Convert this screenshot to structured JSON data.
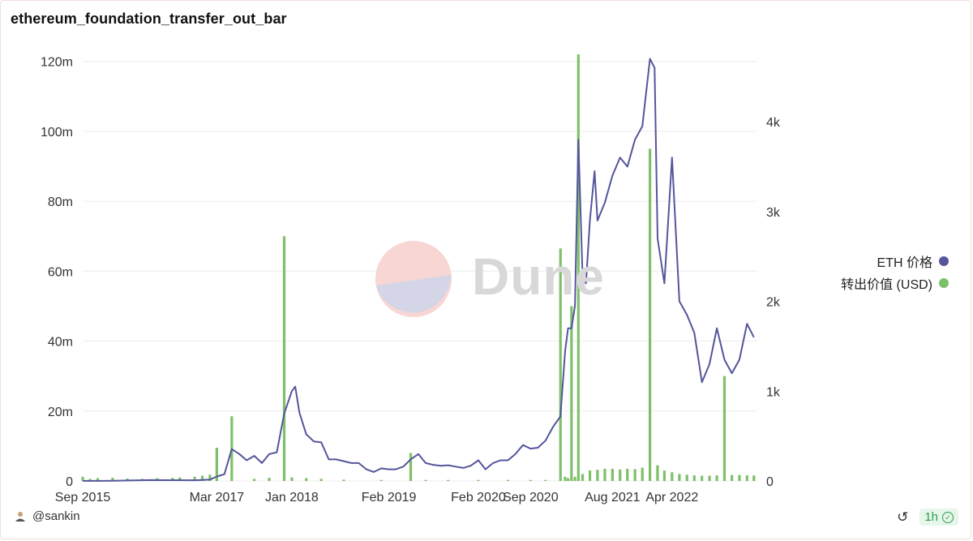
{
  "title": "ethereum_foundation_transfer_out_bar",
  "legend": [
    {
      "label": "ETH 价格",
      "color": "#54559b"
    },
    {
      "label": "转出价值 (USD)",
      "color": "#7ec06a"
    }
  ],
  "watermark": {
    "text": "Dune"
  },
  "footer": {
    "user": "@sankin",
    "age": "1h",
    "icons": [
      "user-icon",
      "refresh-icon",
      "check-icon"
    ]
  },
  "chart_data": {
    "type": "bar",
    "title": "ethereum_foundation_transfer_out_bar",
    "xlabel": "",
    "x_tick_labels": [
      "Sep 2015",
      "Mar 2017",
      "Jan 2018",
      "Feb 2019",
      "Feb 2020",
      "Sep 2020",
      "Aug 2021",
      "Apr 2022"
    ],
    "y_left": {
      "ticks": [
        "0",
        "20m",
        "40m",
        "60m",
        "80m",
        "100m",
        "120m"
      ],
      "range": [
        0,
        122000000
      ]
    },
    "y_right": {
      "ticks": [
        "0",
        "1k",
        "2k",
        "3k",
        "4k"
      ],
      "range": [
        0,
        4750
      ]
    },
    "grid": true,
    "legend_position": "right",
    "series": [
      {
        "name": "转出价值 (USD)",
        "axis": "left",
        "kind": "bar",
        "color": "#7ec06a",
        "x": [
          "2015-09",
          "2015-10",
          "2015-11",
          "2016-01",
          "2016-03",
          "2016-05",
          "2016-07",
          "2016-09",
          "2016-10",
          "2016-12",
          "2017-01",
          "2017-02",
          "2017-03",
          "2017-05",
          "2017-08",
          "2017-10",
          "2017-12",
          "2018-01",
          "2018-03",
          "2018-05",
          "2018-08",
          "2019-01",
          "2019-05",
          "2019-07",
          "2019-10",
          "2020-02",
          "2020-06",
          "2020-09",
          "2020-11",
          "2021-01",
          "2021-01-20",
          "2021-02",
          "2021-02-15",
          "2021-03",
          "2021-03-15",
          "2021-04",
          "2021-05",
          "2021-06",
          "2021-07",
          "2021-08",
          "2021-09",
          "2021-10",
          "2021-11",
          "2021-12",
          "2022-01",
          "2022-02",
          "2022-03",
          "2022-04",
          "2022-05",
          "2022-06",
          "2022-07",
          "2022-08",
          "2022-09",
          "2022-10",
          "2022-11",
          "2022-12",
          "2023-01",
          "2023-02",
          "2023-03"
        ],
        "values": [
          1200000,
          600000,
          800000,
          900000,
          700000,
          600000,
          800000,
          900000,
          1000000,
          1200000,
          1500000,
          1800000,
          9500000,
          18500000,
          600000,
          900000,
          70000000,
          1000000,
          800000,
          600000,
          400000,
          300000,
          8000000,
          300000,
          300000,
          300000,
          300000,
          300000,
          300000,
          66500000,
          1200000,
          800000,
          50000000,
          1200000,
          122000000,
          2000000,
          3000000,
          3200000,
          3500000,
          3500000,
          3300000,
          3500000,
          3400000,
          3800000,
          95000000,
          4500000,
          3000000,
          2500000,
          2000000,
          1800000,
          1600000,
          1500000,
          1500000,
          1600000,
          30000000,
          1700000,
          1700000,
          1600000,
          1600000
        ]
      },
      {
        "name": "ETH 价格",
        "axis": "right",
        "kind": "line",
        "color": "#54559b",
        "x": [
          "2015-09",
          "2016-01",
          "2016-06",
          "2016-12",
          "2017-02",
          "2017-03",
          "2017-04",
          "2017-05",
          "2017-06",
          "2017-07",
          "2017-08",
          "2017-09",
          "2017-10",
          "2017-11",
          "2017-12",
          "2018-01",
          "2018-01-15",
          "2018-02",
          "2018-03",
          "2018-04",
          "2018-05",
          "2018-06",
          "2018-07",
          "2018-08",
          "2018-09",
          "2018-10",
          "2018-11",
          "2018-12",
          "2019-01",
          "2019-02",
          "2019-03",
          "2019-04",
          "2019-05",
          "2019-06",
          "2019-07",
          "2019-08",
          "2019-09",
          "2019-10",
          "2019-11",
          "2019-12",
          "2020-01",
          "2020-02",
          "2020-03",
          "2020-04",
          "2020-05",
          "2020-06",
          "2020-07",
          "2020-08",
          "2020-09",
          "2020-10",
          "2020-11",
          "2020-12",
          "2021-01",
          "2021-01-20",
          "2021-02",
          "2021-02-15",
          "2021-03",
          "2021-03-15",
          "2021-04",
          "2021-04-15",
          "2021-05",
          "2021-05-20",
          "2021-06",
          "2021-07",
          "2021-08",
          "2021-09",
          "2021-10",
          "2021-11",
          "2021-12",
          "2022-01",
          "2022-01-20",
          "2022-02",
          "2022-03",
          "2022-04",
          "2022-05",
          "2022-06",
          "2022-07",
          "2022-08",
          "2022-09",
          "2022-10",
          "2022-11",
          "2022-12",
          "2023-01",
          "2023-02",
          "2023-03"
        ],
        "values": [
          1,
          2,
          10,
          8,
          15,
          50,
          75,
          355,
          300,
          230,
          280,
          200,
          300,
          320,
          750,
          1000,
          1050,
          760,
          520,
          440,
          430,
          240,
          240,
          220,
          200,
          200,
          130,
          100,
          140,
          130,
          130,
          160,
          240,
          300,
          200,
          180,
          170,
          175,
          160,
          145,
          170,
          230,
          130,
          200,
          230,
          230,
          300,
          400,
          360,
          370,
          450,
          600,
          720,
          1450,
          1700,
          1700,
          1950,
          3800,
          2300,
          2200,
          2900,
          3450,
          2900,
          3100,
          3400,
          3600,
          3500,
          3800,
          3950,
          4700,
          4600,
          2700,
          2200,
          3600,
          2000,
          1850,
          1650,
          1100,
          1300,
          1700,
          1350,
          1200,
          1350,
          1750,
          1600
        ]
      }
    ]
  }
}
